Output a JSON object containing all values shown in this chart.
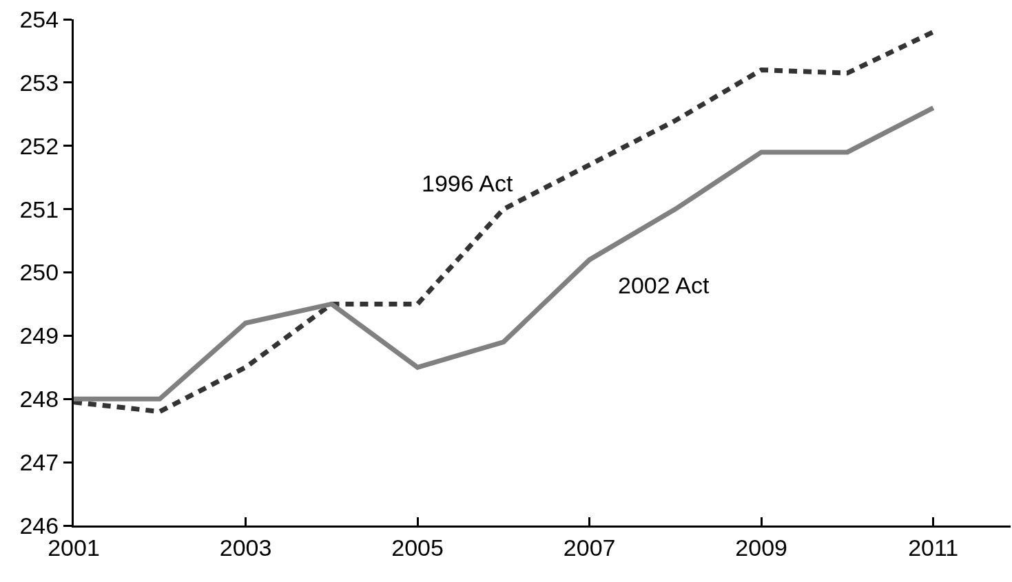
{
  "chart_data": {
    "type": "line",
    "x": [
      2001,
      2002,
      2003,
      2004,
      2005,
      2006,
      2007,
      2008,
      2009,
      2010,
      2011
    ],
    "series": [
      {
        "name": "1996 Act",
        "color": "#333333",
        "line_style": "dashed",
        "values": [
          247.95,
          247.8,
          248.5,
          249.5,
          249.5,
          251.0,
          251.7,
          252.4,
          253.2,
          253.15,
          253.8
        ]
      },
      {
        "name": "2002 Act",
        "color": "#808080",
        "line_style": "solid",
        "values": [
          248.0,
          248.0,
          249.2,
          249.5,
          248.5,
          248.9,
          250.2,
          251.0,
          251.9,
          251.9,
          252.6
        ]
      }
    ],
    "xlim": [
      2001,
      2011.9
    ],
    "xticks": [
      2001,
      2003,
      2005,
      2007,
      2009,
      2011
    ],
    "ylim": [
      246,
      254
    ],
    "yticks": [
      246,
      247,
      248,
      249,
      250,
      251,
      252,
      253,
      254
    ],
    "legend": false,
    "marker": "none"
  }
}
